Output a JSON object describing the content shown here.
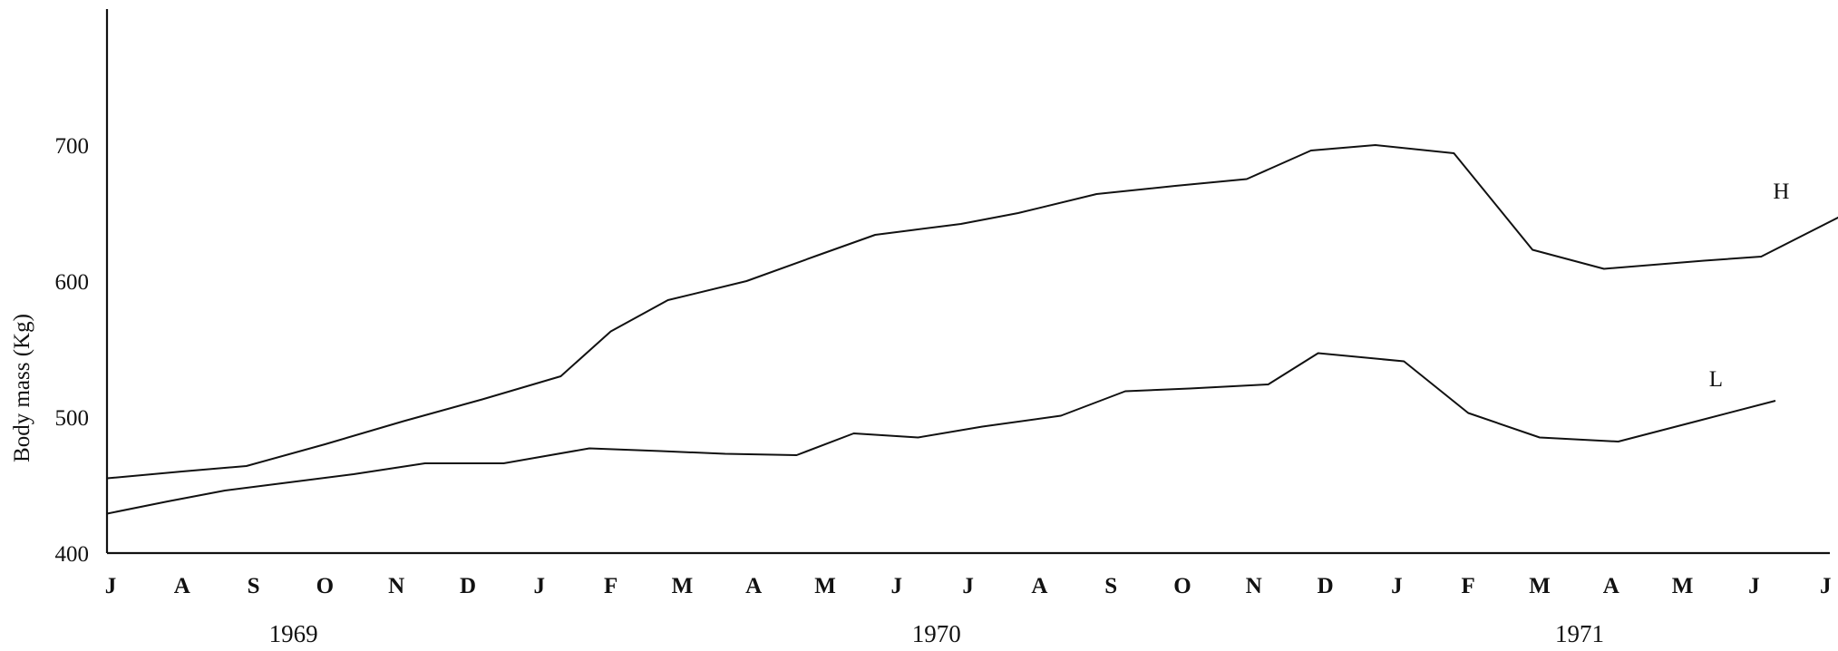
{
  "chart_data": {
    "type": "line",
    "ylabel": "Body mass (Kg)",
    "xlabel": "",
    "ylim": [
      400,
      800
    ],
    "yticks": [
      400,
      500,
      600,
      700
    ],
    "grid": false,
    "months": [
      "J",
      "A",
      "S",
      "O",
      "N",
      "D",
      "J",
      "F",
      "M",
      "A",
      "M",
      "J",
      "J",
      "A",
      "S",
      "O",
      "N",
      "D",
      "J",
      "F",
      "M",
      "A",
      "M",
      "J",
      "J"
    ],
    "years": [
      {
        "label": "1969",
        "month_index": 2
      },
      {
        "label": "1970",
        "month_index": 11
      },
      {
        "label": "1971",
        "month_index": 20
      }
    ],
    "series": [
      {
        "name": "H",
        "points": [
          [
            -0.05,
            455
          ],
          [
            1.0,
            460
          ],
          [
            1.9,
            464
          ],
          [
            3.0,
            480
          ],
          [
            4.1,
            497
          ],
          [
            5.2,
            513
          ],
          [
            6.3,
            530
          ],
          [
            7.0,
            563
          ],
          [
            7.8,
            586
          ],
          [
            8.9,
            600
          ],
          [
            9.9,
            619
          ],
          [
            10.7,
            634
          ],
          [
            11.9,
            642
          ],
          [
            12.7,
            650
          ],
          [
            13.8,
            664
          ],
          [
            14.9,
            670
          ],
          [
            15.9,
            675
          ],
          [
            16.8,
            696
          ],
          [
            17.7,
            700
          ],
          [
            18.8,
            694
          ],
          [
            19.9,
            623
          ],
          [
            20.9,
            609
          ],
          [
            22.3,
            615
          ],
          [
            23.1,
            618
          ],
          [
            24.3,
            650
          ]
        ]
      },
      {
        "name": "L",
        "points": [
          [
            -0.05,
            429
          ],
          [
            0.8,
            438
          ],
          [
            1.6,
            446
          ],
          [
            2.5,
            452
          ],
          [
            3.4,
            458
          ],
          [
            4.4,
            466
          ],
          [
            5.5,
            466
          ],
          [
            6.7,
            477
          ],
          [
            7.7,
            475
          ],
          [
            8.6,
            473
          ],
          [
            9.6,
            472
          ],
          [
            10.4,
            488
          ],
          [
            11.3,
            485
          ],
          [
            12.2,
            493
          ],
          [
            13.3,
            501
          ],
          [
            14.2,
            519
          ],
          [
            15.1,
            521
          ],
          [
            16.2,
            524
          ],
          [
            16.9,
            547
          ],
          [
            18.1,
            541
          ],
          [
            19.0,
            503
          ],
          [
            20.0,
            485
          ],
          [
            21.1,
            482
          ],
          [
            22.2,
            497
          ],
          [
            23.3,
            512
          ]
        ]
      }
    ]
  }
}
